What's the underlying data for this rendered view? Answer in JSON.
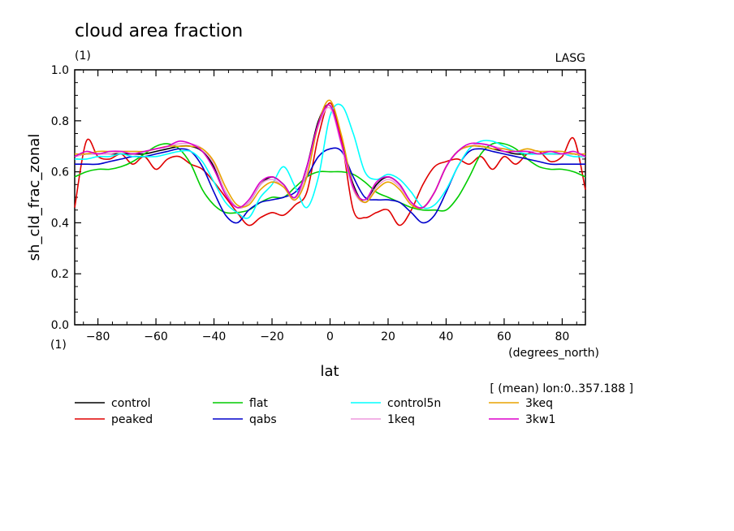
{
  "chart_data": {
    "type": "line",
    "title": "cloud area fraction",
    "units": "(1)",
    "institution": "LASG",
    "xlabel": "lat",
    "xunits": "(degrees_north)",
    "ylabel": "sh_cld_frac_zonal",
    "yunits": "(1)",
    "annotation": "[ (mean) lon:0..357.188 ]",
    "xlim": [
      -88,
      88
    ],
    "ylim": [
      0.0,
      1.0
    ],
    "xticks": [
      -80,
      -60,
      -40,
      -20,
      0,
      20,
      40,
      60,
      80
    ],
    "xtick_labels": [
      "−80",
      "−60",
      "−40",
      "−20",
      "0",
      "20",
      "40",
      "60",
      "80"
    ],
    "yticks": [
      0.0,
      0.2,
      0.4,
      0.6,
      0.8,
      1.0
    ],
    "ytick_labels": [
      "0.0",
      "0.2",
      "0.4",
      "0.6",
      "0.8",
      "1.0"
    ],
    "grid": false,
    "legend_position": "bottom",
    "x": [
      -88,
      -84,
      -80,
      -76,
      -72,
      -68,
      -64,
      -60,
      -56,
      -52,
      -48,
      -44,
      -40,
      -36,
      -32,
      -28,
      -24,
      -20,
      -16,
      -12,
      -8,
      -4,
      0,
      4,
      8,
      12,
      16,
      20,
      24,
      28,
      32,
      36,
      40,
      44,
      48,
      52,
      56,
      60,
      64,
      68,
      72,
      76,
      80,
      84,
      88
    ],
    "series": [
      {
        "name": "control",
        "color": "#000000",
        "values": [
          0.66,
          0.67,
          0.67,
          0.67,
          0.67,
          0.67,
          0.67,
          0.68,
          0.69,
          0.7,
          0.7,
          0.68,
          0.62,
          0.52,
          0.46,
          0.48,
          0.55,
          0.58,
          0.55,
          0.5,
          0.62,
          0.8,
          0.86,
          0.72,
          0.55,
          0.48,
          0.55,
          0.58,
          0.55,
          0.48,
          0.46,
          0.52,
          0.62,
          0.68,
          0.7,
          0.7,
          0.69,
          0.68,
          0.67,
          0.67,
          0.67,
          0.67,
          0.67,
          0.67,
          0.66
        ]
      },
      {
        "name": "peaked",
        "color": "#e00000",
        "values": [
          0.46,
          0.72,
          0.66,
          0.65,
          0.67,
          0.63,
          0.66,
          0.61,
          0.65,
          0.66,
          0.63,
          0.61,
          0.56,
          0.5,
          0.44,
          0.39,
          0.42,
          0.44,
          0.43,
          0.47,
          0.52,
          0.74,
          0.87,
          0.72,
          0.45,
          0.42,
          0.44,
          0.45,
          0.39,
          0.45,
          0.55,
          0.62,
          0.64,
          0.65,
          0.63,
          0.66,
          0.61,
          0.66,
          0.63,
          0.67,
          0.68,
          0.64,
          0.66,
          0.73,
          0.53
        ]
      },
      {
        "name": "flat",
        "color": "#00cc00",
        "values": [
          0.58,
          0.6,
          0.61,
          0.61,
          0.62,
          0.64,
          0.67,
          0.7,
          0.71,
          0.69,
          0.63,
          0.53,
          0.47,
          0.44,
          0.44,
          0.45,
          0.48,
          0.5,
          0.5,
          0.54,
          0.58,
          0.6,
          0.6,
          0.6,
          0.59,
          0.56,
          0.52,
          0.5,
          0.48,
          0.46,
          0.45,
          0.45,
          0.45,
          0.5,
          0.58,
          0.67,
          0.71,
          0.71,
          0.69,
          0.65,
          0.62,
          0.61,
          0.61,
          0.6,
          0.58
        ]
      },
      {
        "name": "qabs",
        "color": "#0000cc",
        "values": [
          0.63,
          0.63,
          0.63,
          0.64,
          0.65,
          0.66,
          0.66,
          0.67,
          0.68,
          0.69,
          0.68,
          0.62,
          0.52,
          0.43,
          0.4,
          0.45,
          0.48,
          0.49,
          0.5,
          0.52,
          0.58,
          0.66,
          0.69,
          0.68,
          0.58,
          0.5,
          0.49,
          0.49,
          0.48,
          0.44,
          0.4,
          0.43,
          0.52,
          0.62,
          0.68,
          0.69,
          0.68,
          0.67,
          0.66,
          0.65,
          0.64,
          0.63,
          0.63,
          0.63,
          0.63
        ]
      },
      {
        "name": "control5n",
        "color": "#00ffff",
        "values": [
          0.65,
          0.65,
          0.66,
          0.66,
          0.67,
          0.66,
          0.66,
          0.66,
          0.67,
          0.68,
          0.68,
          0.64,
          0.56,
          0.48,
          0.44,
          0.42,
          0.5,
          0.55,
          0.62,
          0.54,
          0.46,
          0.58,
          0.82,
          0.86,
          0.75,
          0.6,
          0.57,
          0.59,
          0.57,
          0.52,
          0.46,
          0.47,
          0.53,
          0.62,
          0.69,
          0.72,
          0.72,
          0.7,
          0.68,
          0.67,
          0.67,
          0.67,
          0.67,
          0.66,
          0.66
        ]
      },
      {
        "name": "1keq",
        "color": "#ee99dd",
        "values": [
          0.66,
          0.67,
          0.67,
          0.67,
          0.68,
          0.68,
          0.68,
          0.69,
          0.7,
          0.71,
          0.71,
          0.69,
          0.63,
          0.52,
          0.46,
          0.48,
          0.55,
          0.57,
          0.54,
          0.49,
          0.6,
          0.78,
          0.85,
          0.7,
          0.53,
          0.48,
          0.54,
          0.57,
          0.54,
          0.48,
          0.46,
          0.52,
          0.62,
          0.68,
          0.7,
          0.71,
          0.7,
          0.69,
          0.68,
          0.68,
          0.68,
          0.68,
          0.67,
          0.67,
          0.66
        ]
      },
      {
        "name": "3keq",
        "color": "#e8a400",
        "values": [
          0.67,
          0.67,
          0.68,
          0.68,
          0.68,
          0.68,
          0.68,
          0.69,
          0.7,
          0.7,
          0.7,
          0.69,
          0.64,
          0.54,
          0.47,
          0.47,
          0.53,
          0.56,
          0.54,
          0.49,
          0.58,
          0.79,
          0.88,
          0.74,
          0.54,
          0.48,
          0.53,
          0.56,
          0.53,
          0.47,
          0.46,
          0.52,
          0.62,
          0.68,
          0.7,
          0.7,
          0.69,
          0.69,
          0.68,
          0.69,
          0.68,
          0.68,
          0.68,
          0.67,
          0.67
        ]
      },
      {
        "name": "3kw1",
        "color": "#dd00cc",
        "values": [
          0.66,
          0.68,
          0.67,
          0.68,
          0.68,
          0.67,
          0.68,
          0.69,
          0.7,
          0.72,
          0.71,
          0.68,
          0.61,
          0.51,
          0.46,
          0.49,
          0.56,
          0.58,
          0.55,
          0.5,
          0.62,
          0.79,
          0.86,
          0.71,
          0.54,
          0.49,
          0.56,
          0.58,
          0.55,
          0.48,
          0.46,
          0.52,
          0.62,
          0.68,
          0.71,
          0.71,
          0.7,
          0.68,
          0.68,
          0.68,
          0.67,
          0.68,
          0.67,
          0.68,
          0.66
        ]
      }
    ]
  }
}
